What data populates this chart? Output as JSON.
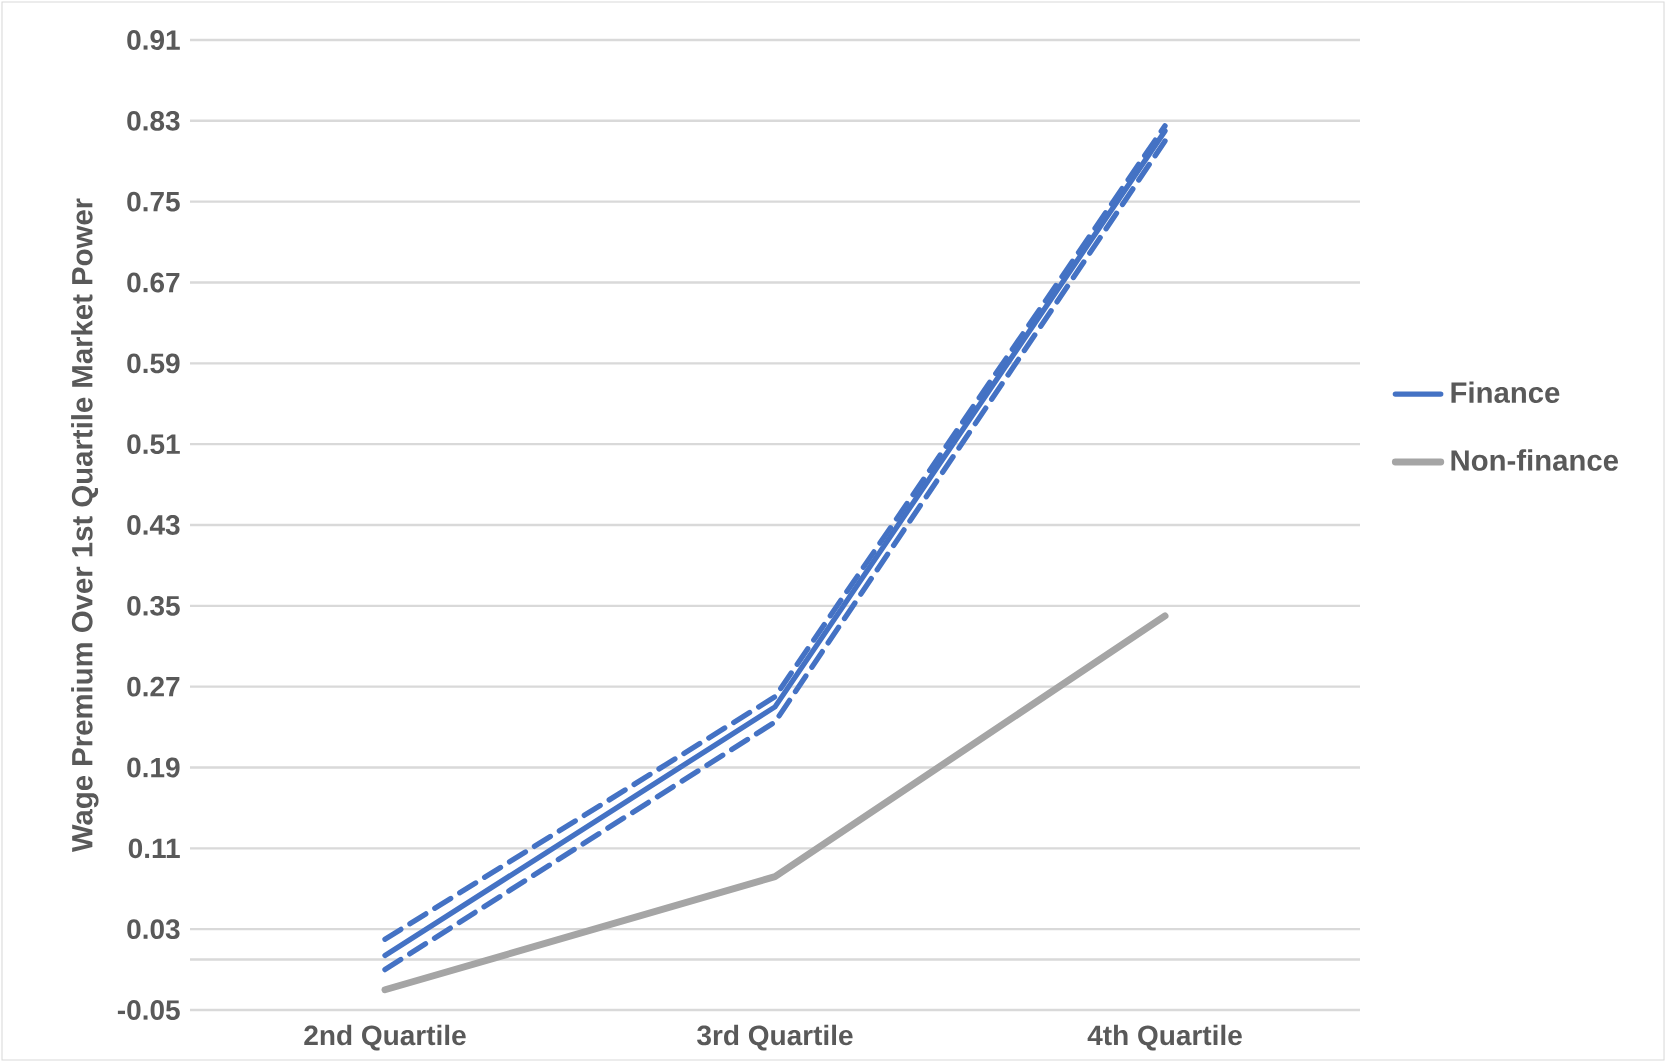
{
  "chart_data": {
    "type": "line",
    "ylabel": "Wage Premium Over 1st Quartile Market Power",
    "categories": [
      "2nd Quartile",
      "3rd Quartile",
      "4th Quartile"
    ],
    "series": [
      {
        "name": "Finance",
        "color": "#4472c4",
        "values": [
          0.004,
          0.25,
          0.82
        ],
        "line_style": "solid"
      },
      {
        "color": "#4472c4",
        "values": [
          0.02,
          0.26,
          0.825
        ],
        "line_style": "dashed"
      },
      {
        "color": "#4472c4",
        "values": [
          -0.01,
          0.235,
          0.81
        ],
        "line_style": "dashed"
      },
      {
        "name": "Non-finance",
        "color": "#a5a5a5",
        "values": [
          -0.03,
          0.082,
          0.34
        ],
        "line_style": "solid"
      }
    ],
    "ylim": [
      -0.05,
      0.91
    ],
    "yticks": [
      -0.05,
      0.03,
      0.11,
      0.19,
      0.27,
      0.35,
      0.43,
      0.51,
      0.59,
      0.67,
      0.75,
      0.83,
      0.91
    ],
    "grid": "y",
    "legend": "right"
  }
}
